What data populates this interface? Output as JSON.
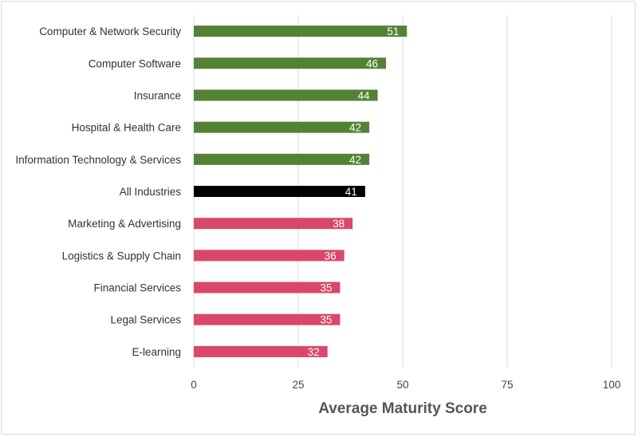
{
  "chart_data": {
    "type": "bar",
    "orientation": "horizontal",
    "title": "",
    "xlabel": "Average Maturity Score",
    "ylabel": "",
    "xlim": [
      0,
      100
    ],
    "xticks": [
      0,
      25,
      50,
      75,
      100
    ],
    "grid": true,
    "legend": "none",
    "categories": [
      "Computer & Network Security",
      "Computer Software",
      "Insurance",
      "Hospital & Health Care",
      "Information Technology & Services",
      "All Industries",
      "Marketing & Advertising",
      "Logistics & Supply Chain",
      "Financial Services",
      "Legal Services",
      "E-learning"
    ],
    "values": [
      51,
      46,
      44,
      42,
      42,
      41,
      38,
      36,
      35,
      35,
      32
    ],
    "bar_colors": [
      "#548235",
      "#548235",
      "#548235",
      "#548235",
      "#548235",
      "#000000",
      "#d9486a",
      "#d9486a",
      "#d9486a",
      "#d9486a",
      "#d9486a"
    ]
  },
  "colors": {
    "above_average": "#548235",
    "average": "#000000",
    "below_average": "#d9486a",
    "grid": "#d9d9d9",
    "border": "#d9d9d9"
  }
}
